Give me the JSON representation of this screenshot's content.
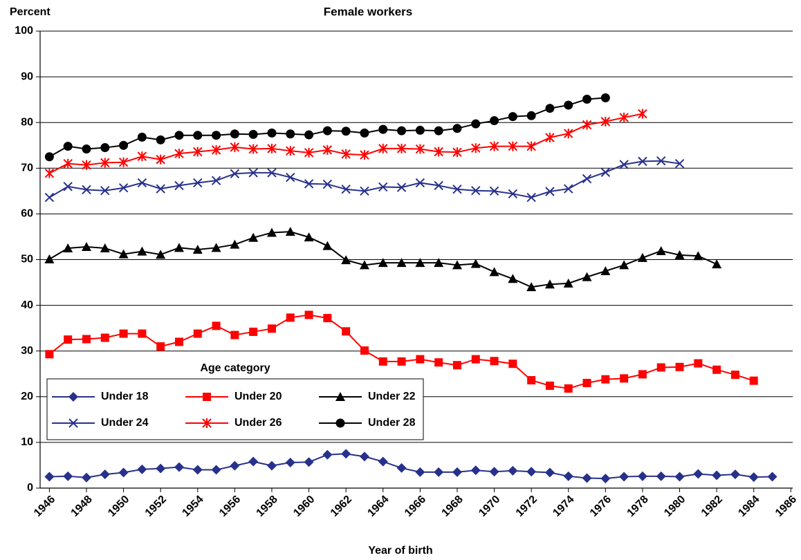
{
  "chart_data": {
    "type": "line",
    "title": "Female workers",
    "y_label": "Percent",
    "x_label": "Year of birth",
    "legend_title": "Age category",
    "legend_position": "lower left",
    "grid": true,
    "x": [
      1946,
      1947,
      1948,
      1949,
      1950,
      1951,
      1952,
      1953,
      1954,
      1955,
      1956,
      1957,
      1958,
      1959,
      1960,
      1961,
      1962,
      1963,
      1964,
      1965,
      1966,
      1967,
      1968,
      1969,
      1970,
      1971,
      1972,
      1973,
      1974,
      1975,
      1976,
      1977,
      1978,
      1979,
      1980,
      1981,
      1982,
      1983,
      1984,
      1985
    ],
    "xlim": [
      1945.5,
      1986.1
    ],
    "xticks": [
      1946,
      1948,
      1950,
      1952,
      1954,
      1956,
      1958,
      1960,
      1962,
      1964,
      1966,
      1968,
      1970,
      1972,
      1974,
      1976,
      1978,
      1980,
      1982,
      1984,
      1986
    ],
    "ylim": [
      0,
      100
    ],
    "yticks": [
      0,
      10,
      20,
      30,
      40,
      50,
      60,
      70,
      80,
      90,
      100
    ],
    "series": [
      {
        "name": "Under 18",
        "color": "#27318b",
        "marker": "diamond",
        "values": [
          2.5,
          2.6,
          2.3,
          3.0,
          3.4,
          4.1,
          4.3,
          4.6,
          4.0,
          4.0,
          4.9,
          5.8,
          4.9,
          5.6,
          5.7,
          7.3,
          7.5,
          6.9,
          5.8,
          4.4,
          3.5,
          3.5,
          3.5,
          3.9,
          3.6,
          3.8,
          3.6,
          3.4,
          2.6,
          2.2,
          2.1,
          2.5,
          2.6,
          2.6,
          2.5,
          3.1,
          2.8,
          3.0,
          2.4,
          2.5
        ]
      },
      {
        "name": "Under 20",
        "color": "#ff0000",
        "marker": "square",
        "values": [
          29.3,
          32.5,
          32.6,
          32.9,
          33.8,
          33.8,
          31.0,
          32.0,
          33.8,
          35.5,
          33.5,
          34.2,
          34.9,
          37.3,
          37.9,
          37.2,
          34.3,
          30.1,
          27.7,
          27.7,
          28.2,
          27.5,
          26.9,
          28.2,
          27.8,
          27.2,
          23.6,
          22.4,
          21.8,
          23.0,
          23.8,
          24.0,
          24.9,
          26.4,
          26.5,
          27.3,
          25.9,
          24.8,
          23.5,
          null
        ]
      },
      {
        "name": "Under 22",
        "color": "#000000",
        "marker": "triangle",
        "values": [
          50.1,
          52.5,
          52.8,
          52.5,
          51.2,
          51.8,
          51.1,
          52.6,
          52.2,
          52.6,
          53.3,
          54.8,
          55.9,
          56.1,
          54.9,
          53.0,
          49.9,
          48.8,
          49.3,
          49.3,
          49.3,
          49.3,
          48.8,
          49.1,
          47.3,
          45.8,
          44.0,
          44.6,
          44.8,
          46.2,
          47.5,
          48.8,
          50.4,
          51.9,
          51.0,
          50.8,
          49.0,
          null,
          null,
          null
        ]
      },
      {
        "name": "Under 24",
        "color": "#27318b",
        "marker": "x",
        "values": [
          63.6,
          66.0,
          65.3,
          65.1,
          65.7,
          66.8,
          65.5,
          66.2,
          66.8,
          67.3,
          68.8,
          69.0,
          69.0,
          68.0,
          66.6,
          66.5,
          65.4,
          65.0,
          65.9,
          65.8,
          66.8,
          66.2,
          65.4,
          65.1,
          65.0,
          64.4,
          63.6,
          64.9,
          65.5,
          67.7,
          69.1,
          70.8,
          71.5,
          71.6,
          71.0,
          null,
          null,
          null,
          null,
          null
        ]
      },
      {
        "name": "Under 26",
        "color": "#ff0000",
        "marker": "asterisk",
        "values": [
          68.9,
          71.0,
          70.7,
          71.2,
          71.3,
          72.6,
          71.9,
          73.2,
          73.6,
          74.0,
          74.6,
          74.2,
          74.3,
          73.8,
          73.4,
          74.0,
          73.1,
          72.9,
          74.3,
          74.3,
          74.2,
          73.6,
          73.5,
          74.4,
          74.8,
          74.8,
          74.8,
          76.7,
          77.6,
          79.5,
          80.2,
          81.1,
          81.9,
          null,
          null,
          null,
          null,
          null,
          null,
          null
        ]
      },
      {
        "name": "Under 28",
        "color": "#000000",
        "marker": "circle",
        "values": [
          72.5,
          74.8,
          74.2,
          74.5,
          75.0,
          76.8,
          76.2,
          77.2,
          77.2,
          77.2,
          77.5,
          77.4,
          77.7,
          77.5,
          77.3,
          78.2,
          78.1,
          77.7,
          78.5,
          78.2,
          78.3,
          78.2,
          78.7,
          79.7,
          80.4,
          81.3,
          81.5,
          83.1,
          83.8,
          85.1,
          85.4,
          null,
          null,
          null,
          null,
          null,
          null,
          null,
          null,
          null
        ]
      }
    ]
  }
}
